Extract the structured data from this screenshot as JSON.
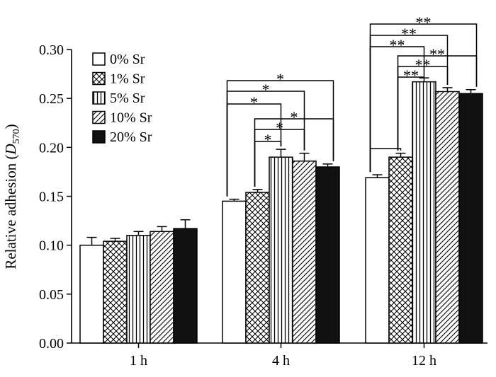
{
  "chart_data": {
    "type": "bar",
    "ylabel": "Relative adhesion",
    "ylabel_symbol": "D",
    "ylabel_subscript": "570",
    "ylim": [
      0,
      0.3
    ],
    "yticks": [
      0.0,
      0.05,
      0.1,
      0.15,
      0.2,
      0.25,
      0.3
    ],
    "ytick_labels": [
      "0.00",
      "0.05",
      "0.10",
      "0.15",
      "0.20",
      "0.25",
      "0.30"
    ],
    "categories": [
      "1 h",
      "4 h",
      "12 h"
    ],
    "legend_position": "top-left",
    "series": [
      {
        "name": "0% Sr",
        "pattern": "white",
        "values": [
          0.1,
          0.145,
          0.169
        ],
        "errors": [
          0.008,
          0.002,
          0.003
        ]
      },
      {
        "name": "1% Sr",
        "pattern": "crosshatch",
        "values": [
          0.104,
          0.154,
          0.19
        ],
        "errors": [
          0.003,
          0.003,
          0.004
        ]
      },
      {
        "name": "5% Sr",
        "pattern": "vertical",
        "values": [
          0.11,
          0.19,
          0.267
        ],
        "errors": [
          0.004,
          0.008,
          0.004
        ]
      },
      {
        "name": "10% Sr",
        "pattern": "diagonal",
        "values": [
          0.114,
          0.186,
          0.257
        ],
        "errors": [
          0.005,
          0.008,
          0.004
        ]
      },
      {
        "name": "20% Sr",
        "pattern": "black",
        "values": [
          0.117,
          0.18,
          0.255
        ],
        "errors": [
          0.009,
          0.003,
          0.004
        ]
      }
    ],
    "significance": [
      {
        "category": 1,
        "from": 0,
        "to": 4,
        "label": "*"
      },
      {
        "category": 1,
        "from": 0,
        "to": 3,
        "label": "*"
      },
      {
        "category": 1,
        "from": 0,
        "to": 2,
        "label": "*"
      },
      {
        "category": 1,
        "from": 1,
        "to": 4,
        "label": "*"
      },
      {
        "category": 1,
        "from": 1,
        "to": 3,
        "label": "*"
      },
      {
        "category": 1,
        "from": 1,
        "to": 2,
        "label": "*"
      },
      {
        "category": 2,
        "from": 0,
        "to": 4,
        "label": "**"
      },
      {
        "category": 2,
        "from": 0,
        "to": 3,
        "label": "**"
      },
      {
        "category": 2,
        "from": 0,
        "to": 2,
        "label": "**"
      },
      {
        "category": 2,
        "from": 0,
        "to": 1,
        "label": ""
      },
      {
        "category": 2,
        "from": 1,
        "to": 4,
        "label": "**"
      },
      {
        "category": 2,
        "from": 1,
        "to": 3,
        "label": "**"
      },
      {
        "category": 2,
        "from": 1,
        "to": 2,
        "label": "**"
      }
    ]
  }
}
